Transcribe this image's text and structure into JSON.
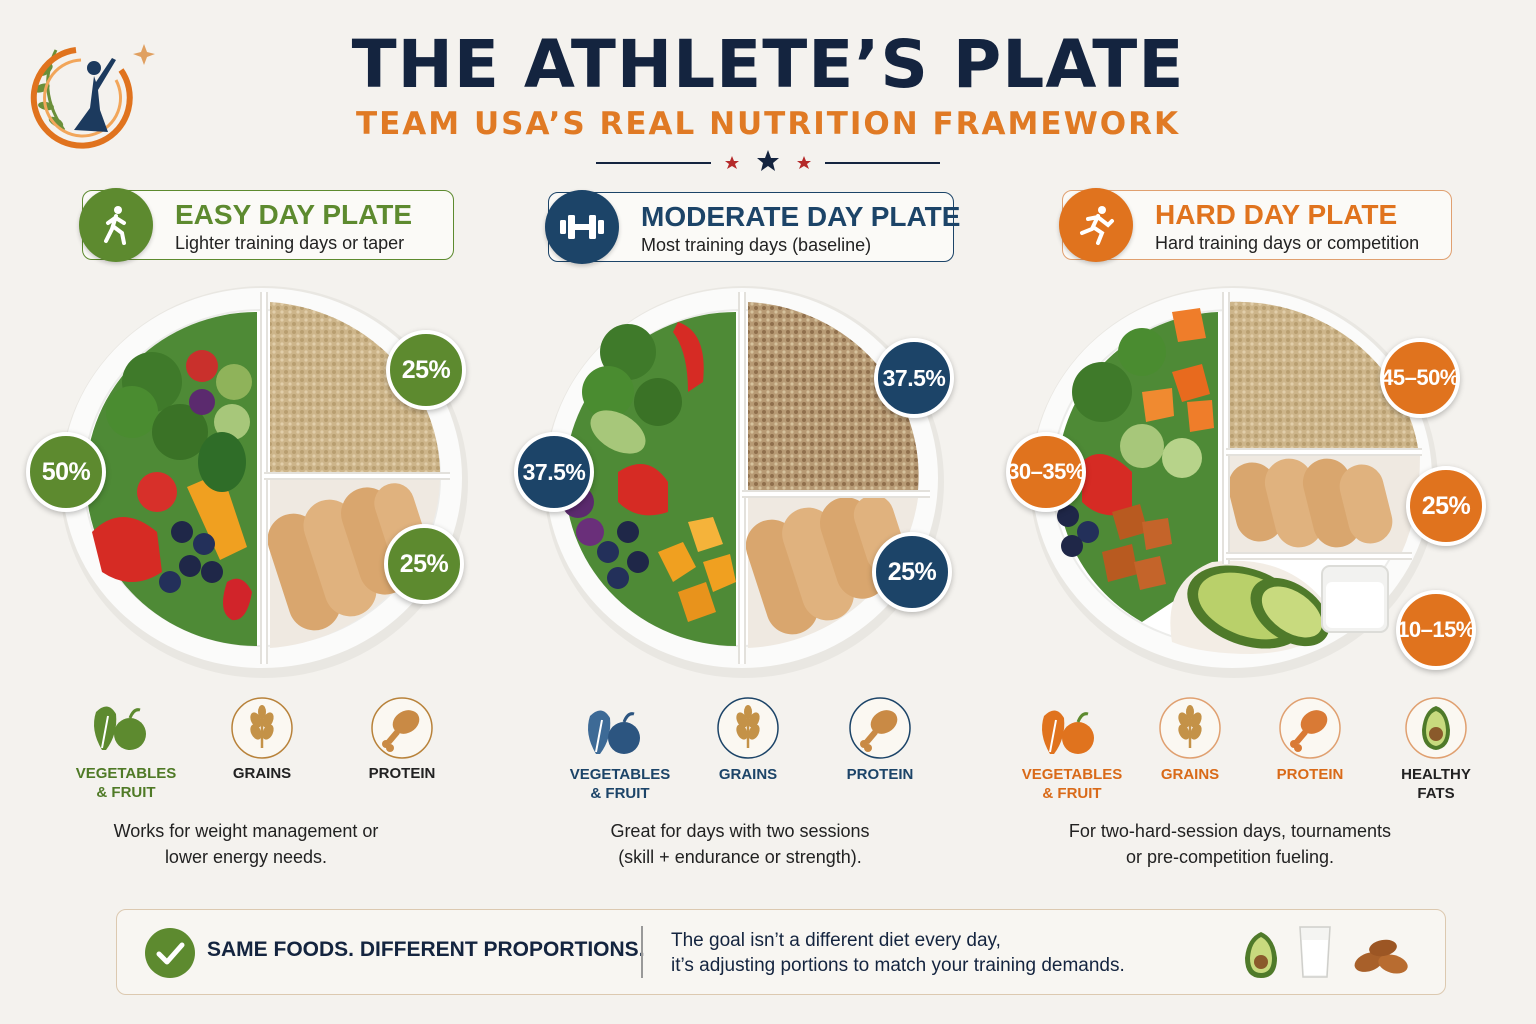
{
  "header": {
    "title": "THE ATHLETE’S PLATE",
    "subtitle": "TEAM USA’S REAL NUTRITION FRAMEWORK"
  },
  "colors": {
    "navy": "#1c4468",
    "green": "#5d8a2f",
    "orange": "#e0731e",
    "gold": "#b8823a"
  },
  "plates": [
    {
      "title": "EASY DAY PLATE",
      "description": "Lighter training days or taper",
      "icon": "walking-person-icon",
      "percentages": [
        "25%",
        "50%",
        "25%"
      ],
      "food_groups": [
        {
          "label": "VEGETABLES\n& FRUIT",
          "icon": "vegetables-fruit-icon"
        },
        {
          "label": "GRAINS",
          "icon": "wheat-icon"
        },
        {
          "label": "PROTEIN",
          "icon": "drumstick-icon"
        }
      ],
      "note": "Works for weight management or\nlower energy needs."
    },
    {
      "title": "MODERATE DAY PLATE",
      "description": "Most training days (baseline)",
      "icon": "dumbbell-icon",
      "percentages": [
        "37.5%",
        "37.5%",
        "25%"
      ],
      "food_groups": [
        {
          "label": "VEGETABLES\n& FRUIT",
          "icon": "vegetables-fruit-icon"
        },
        {
          "label": "GRAINS",
          "icon": "wheat-icon"
        },
        {
          "label": "PROTEIN",
          "icon": "drumstick-icon"
        }
      ],
      "note": "Great for days with two sessions\n(skill + endurance or strength)."
    },
    {
      "title": "HARD DAY PLATE",
      "description": "Hard training days or competition",
      "icon": "running-person-icon",
      "percentages": [
        "45–50%",
        "30–35%",
        "25%",
        "10–15%"
      ],
      "food_groups": [
        {
          "label": "VEGETABLES\n& FRUIT",
          "icon": "vegetables-fruit-icon"
        },
        {
          "label": "GRAINS",
          "icon": "wheat-icon"
        },
        {
          "label": "PROTEIN",
          "icon": "drumstick-icon"
        },
        {
          "label": "HEALTHY\nFATS",
          "icon": "avocado-icon"
        }
      ],
      "note": "For two-hard-session days, tournaments\nor pre-competition fueling."
    }
  ],
  "footer": {
    "headline": "SAME FOODS. DIFFERENT PROPORTIONS.",
    "text": "The goal isn’t a different diet every day,\nit’s adjusting portions to match your training demands."
  }
}
